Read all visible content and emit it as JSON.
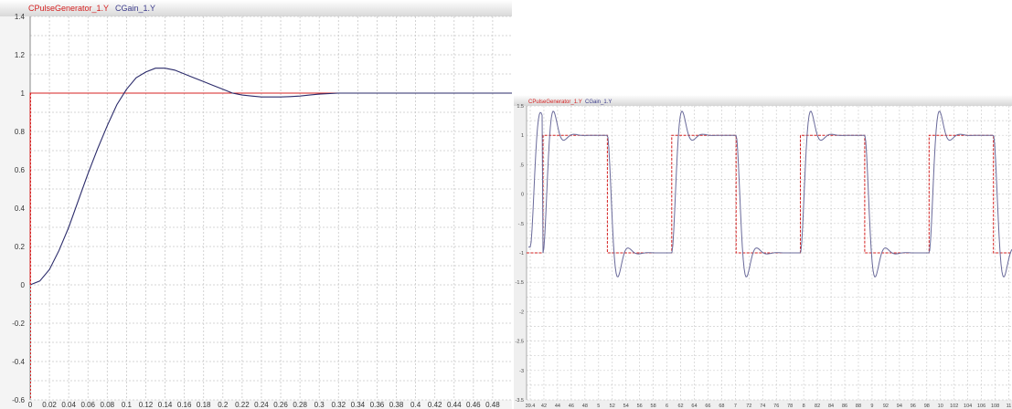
{
  "chart_data": [
    {
      "type": "line",
      "legend": [
        "CPulseGenerator_1.Y",
        "CGain_1.Y"
      ],
      "legend_placement": "top-left",
      "grid": true,
      "xlim": [
        0,
        0.5
      ],
      "ylim": [
        -0.6,
        1.4
      ],
      "x_ticks": [
        "0",
        "0.02",
        "0.04",
        "0.06",
        "0.08",
        "0.1",
        "0.12",
        "0.14",
        "0.16",
        "0.18",
        "0.2",
        "0.22",
        "0.24",
        "0.26",
        "0.28",
        "0.3",
        "0.32",
        "0.34",
        "0.36",
        "0.38",
        "0.4",
        "0.42",
        "0.44",
        "0.46",
        "0.48"
      ],
      "y_ticks": [
        "1.4",
        "1.2",
        "1",
        "0.8",
        "0.6",
        "0.4",
        "0.2",
        "0",
        "-0.2",
        "-0.4",
        "-0.6"
      ],
      "series": [
        {
          "name": "CPulseGenerator_1.Y",
          "color": "#d42020",
          "x": [
            0,
            0,
            0.5
          ],
          "y": [
            0,
            1,
            1
          ]
        },
        {
          "name": "CGain_1.Y",
          "color": "#2a2a6a",
          "x": [
            0,
            0.01,
            0.02,
            0.03,
            0.04,
            0.05,
            0.06,
            0.07,
            0.08,
            0.09,
            0.1,
            0.11,
            0.12,
            0.13,
            0.14,
            0.15,
            0.16,
            0.17,
            0.18,
            0.19,
            0.2,
            0.21,
            0.22,
            0.23,
            0.24,
            0.25,
            0.26,
            0.27,
            0.28,
            0.29,
            0.3,
            0.32,
            0.34,
            0.36,
            0.38,
            0.4,
            0.45,
            0.5
          ],
          "y": [
            0,
            0.02,
            0.08,
            0.18,
            0.3,
            0.44,
            0.58,
            0.71,
            0.83,
            0.94,
            1.02,
            1.08,
            1.11,
            1.13,
            1.13,
            1.12,
            1.1,
            1.08,
            1.06,
            1.04,
            1.02,
            1.0,
            0.99,
            0.985,
            0.98,
            0.98,
            0.98,
            0.982,
            0.985,
            0.99,
            0.995,
            1.0,
            1.0,
            1.0,
            1.0,
            1.0,
            1.0,
            1.0
          ]
        }
      ]
    },
    {
      "type": "line",
      "legend": [
        "CPulseGenerator_1.Y",
        "CGain_1.Y"
      ],
      "legend_placement": "top-left",
      "grid": true,
      "ylim": [
        -3.5,
        1.5
      ],
      "y_ticks": [
        "1.5",
        "1",
        ".5",
        "0",
        "-.5",
        "-1",
        "-1.5",
        "-2",
        "-2.5",
        "-3",
        "-3.5"
      ],
      "x_ticks": [
        "39.4",
        "42",
        "44",
        "46",
        "48",
        "5",
        "52",
        "54",
        "56",
        "58",
        "6",
        "62",
        "64",
        "66",
        "68",
        "7",
        "72",
        "74",
        "76",
        "78",
        "8",
        "82",
        "84",
        "86",
        "88",
        "9",
        "92",
        "94",
        "96",
        "98",
        "10",
        "102",
        "104",
        "106",
        "108",
        "11"
      ],
      "series": [
        {
          "name": "CPulseGenerator_1.Y",
          "color": "#d42020",
          "square_wave": {
            "high": 1,
            "low": -1,
            "cycles": 4
          }
        },
        {
          "name": "CGain_1.Y",
          "color": "#6a6a9a",
          "overshoot": 1.27,
          "undershoot": -1.27
        }
      ]
    }
  ]
}
